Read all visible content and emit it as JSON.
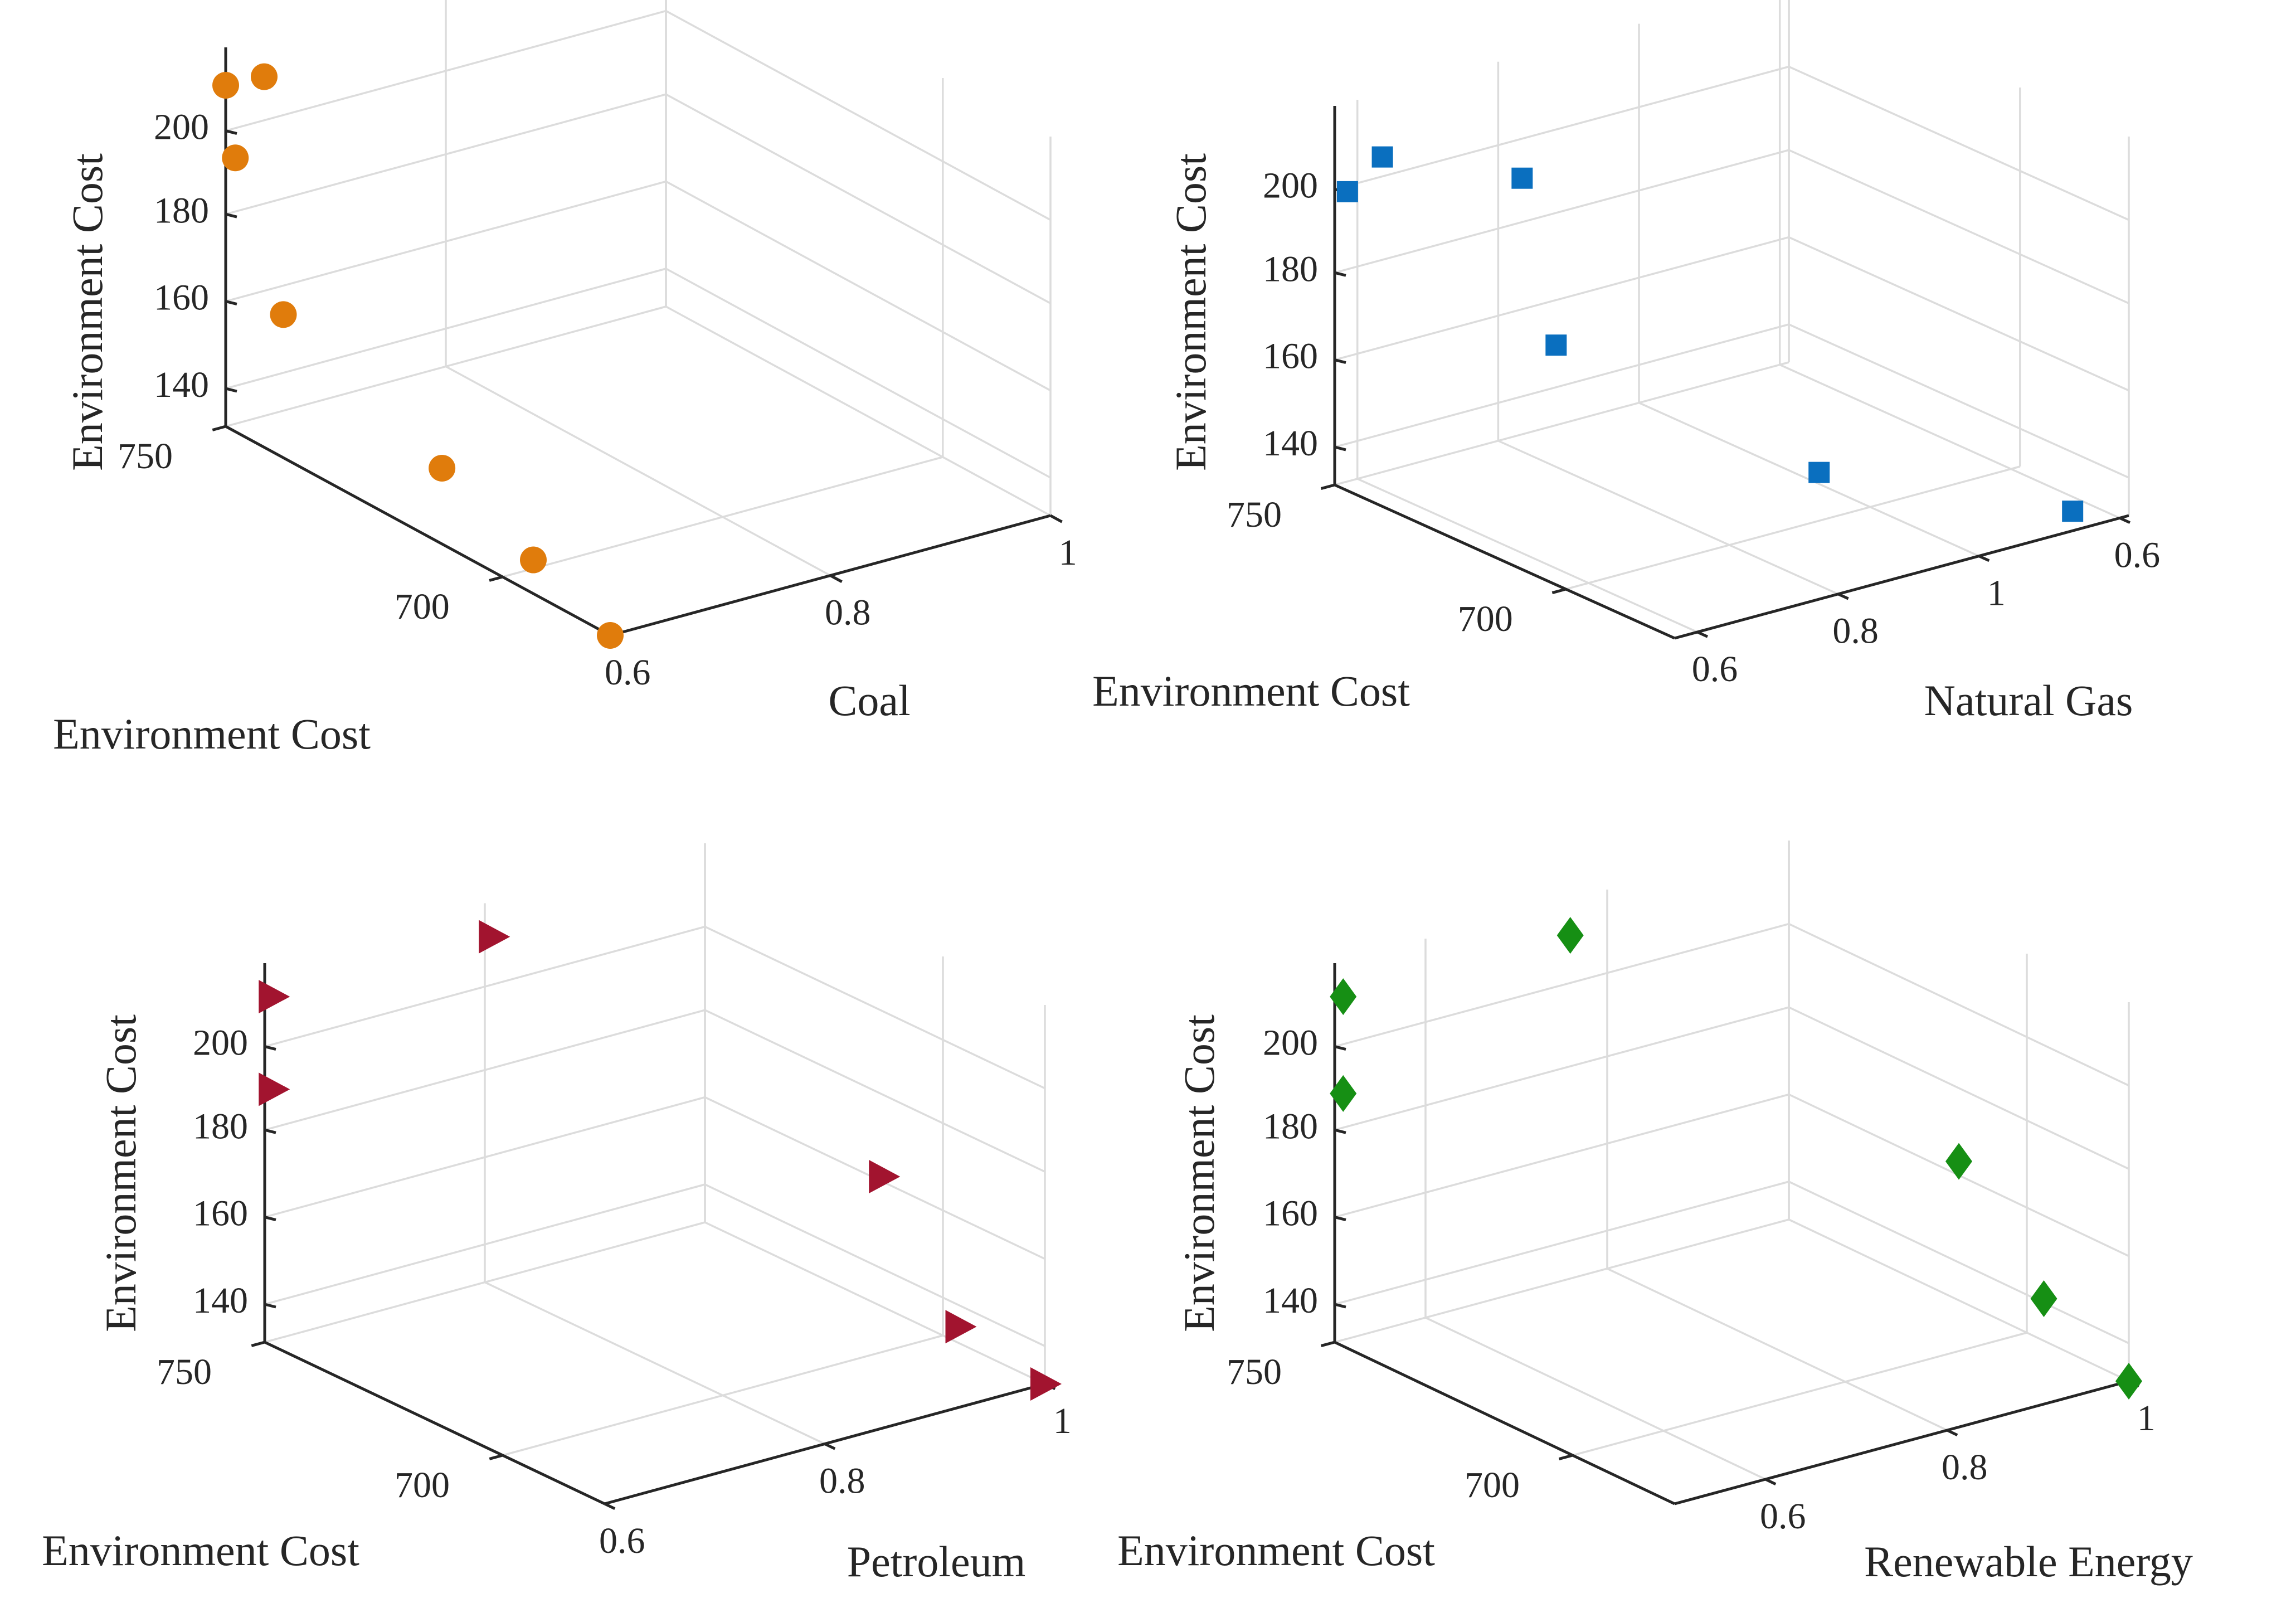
{
  "colors": {
    "axis": "#262626",
    "grid": "#dcdcdc",
    "series": [
      "#e07c0c",
      "#0a6fbf",
      "#a2142f",
      "#168f14"
    ]
  },
  "chart_data": [
    {
      "type": "scatter3d",
      "marker": "circle",
      "color": "#e07c0c",
      "xlabel": "Coal",
      "ylabel": "Environment Cost",
      "zlabel": "Environment Cost",
      "x_ticks": [
        "0.6",
        "0.8",
        "1"
      ],
      "y_ticks": [
        "700",
        "750"
      ],
      "z_ticks": [
        "140",
        "160",
        "180",
        "200"
      ],
      "xlim": [
        0.6,
        1.0
      ],
      "ylim": [
        680,
        760
      ],
      "zlim": [
        130,
        220
      ],
      "points": [
        {
          "x": 0.6,
          "y": 680,
          "z": 130
        },
        {
          "x": 0.6,
          "y": 696,
          "z": 138
        },
        {
          "x": 0.6,
          "y": 715,
          "z": 148
        },
        {
          "x": 0.6,
          "y": 748,
          "z": 164
        },
        {
          "x": 0.6,
          "y": 758,
          "z": 195
        },
        {
          "x": 0.6,
          "y": 760,
          "z": 211
        },
        {
          "x": 0.6,
          "y": 752,
          "z": 218
        }
      ]
    },
    {
      "type": "scatter3d",
      "marker": "square",
      "color": "#0a6fbf",
      "xlabel": "Natural Gas",
      "ylabel": "Environment Cost",
      "zlabel": "Environment Cost",
      "x_ticks": [
        "0.6",
        "0.8",
        "1",
        "0.6"
      ],
      "y_ticks": [
        "700",
        "750"
      ],
      "z_ticks": [
        "140",
        "160",
        "180",
        "200"
      ],
      "xlim": [
        0.55,
        1.2
      ],
      "ylim": [
        680,
        760
      ],
      "zlim": [
        130,
        220
      ],
      "points": [
        {
          "x": 0.55,
          "y": 757,
          "z": 201
        },
        {
          "x": 0.6,
          "y": 757,
          "z": 207
        },
        {
          "x": 0.8,
          "y": 757,
          "z": 193
        },
        {
          "x": 0.8,
          "y": 749,
          "z": 157
        },
        {
          "x": 1.0,
          "y": 720,
          "z": 131
        },
        {
          "x": 1.15,
          "y": 685,
          "z": 131
        }
      ]
    },
    {
      "type": "scatter3d",
      "marker": "triangle-right",
      "color": "#a2142f",
      "xlabel": "Petroleum",
      "ylabel": "Environment Cost",
      "zlabel": "Environment Cost",
      "x_ticks": [
        "0.6",
        "0.8",
        "1"
      ],
      "y_ticks": [
        "700",
        "750"
      ],
      "z_ticks": [
        "140",
        "160",
        "180",
        "200"
      ],
      "xlim": [
        0.6,
        1.0
      ],
      "ylim": [
        680,
        760
      ],
      "zlim": [
        130,
        220
      ],
      "points": [
        {
          "x": 0.6,
          "y": 758,
          "z": 191
        },
        {
          "x": 0.6,
          "y": 758,
          "z": 213
        },
        {
          "x": 0.8,
          "y": 758,
          "z": 213
        },
        {
          "x": 1.0,
          "y": 718,
          "z": 161
        },
        {
          "x": 1.0,
          "y": 700,
          "z": 134
        },
        {
          "x": 1.0,
          "y": 680,
          "z": 130
        }
      ]
    },
    {
      "type": "scatter3d",
      "marker": "diamond",
      "color": "#168f14",
      "xlabel": "Renewable Energy",
      "ylabel": "Environment Cost",
      "zlabel": "Environment Cost",
      "x_ticks": [
        "0.6",
        "0.8",
        "1"
      ],
      "y_ticks": [
        "700",
        "750"
      ],
      "z_ticks": [
        "140",
        "160",
        "180",
        "200"
      ],
      "xlim": [
        0.6,
        1.0
      ],
      "ylim": [
        680,
        760
      ],
      "zlim": [
        130,
        220
      ],
      "points": [
        {
          "x": 0.6,
          "y": 758,
          "z": 190
        },
        {
          "x": 0.6,
          "y": 758,
          "z": 213
        },
        {
          "x": 0.8,
          "y": 758,
          "z": 213
        },
        {
          "x": 1.0,
          "y": 720,
          "z": 163
        },
        {
          "x": 1.0,
          "y": 700,
          "z": 140
        },
        {
          "x": 1.0,
          "y": 680,
          "z": 130
        }
      ]
    }
  ]
}
